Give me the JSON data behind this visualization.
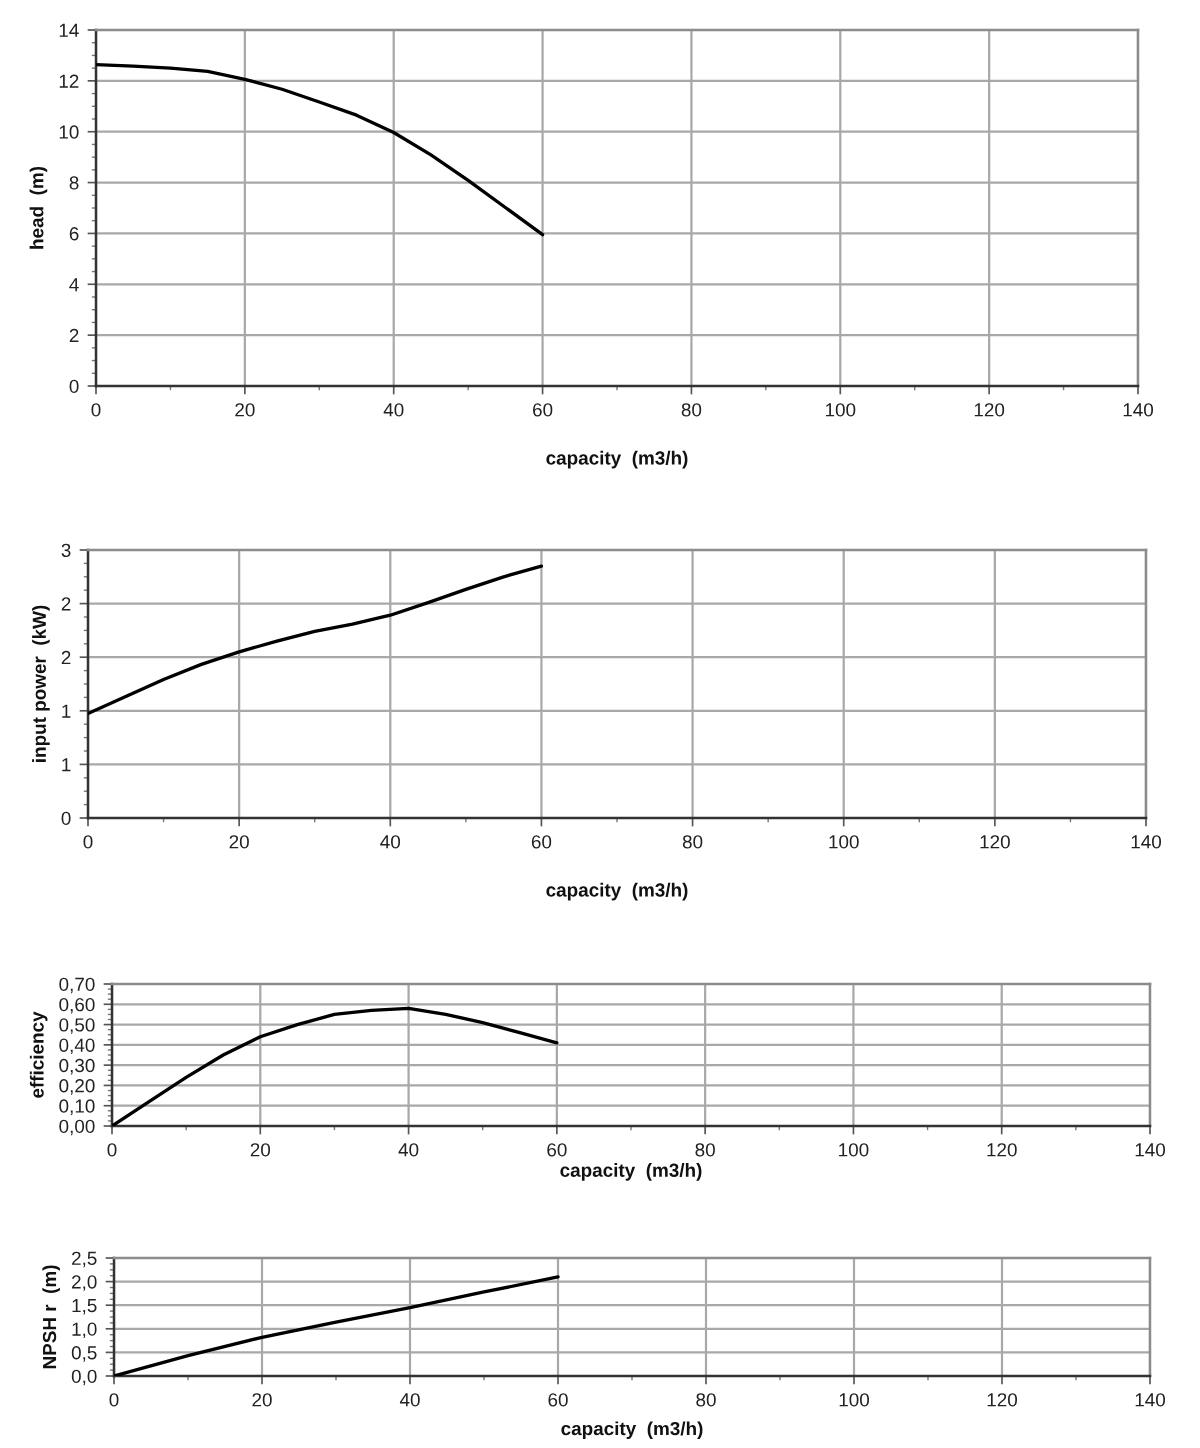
{
  "chart_data": [
    {
      "type": "line",
      "xlabel": "capacity  (m3/h)",
      "ylabel": "head  (m)",
      "x": [
        0,
        5,
        10,
        15,
        20,
        25,
        30,
        35,
        40,
        45,
        50,
        55,
        60
      ],
      "series": [
        {
          "color": "#000000",
          "values": [
            12.64,
            12.58,
            12.5,
            12.37,
            12.06,
            11.67,
            11.17,
            10.65,
            9.97,
            9.09,
            8.09,
            7.02,
            5.95
          ]
        }
      ],
      "xlim": [
        0,
        140
      ],
      "xticks": [
        0,
        20,
        40,
        60,
        80,
        100,
        120,
        140
      ],
      "ylim": [
        0,
        14
      ],
      "yticks": [
        0,
        2,
        4,
        6,
        8,
        10,
        12,
        14
      ],
      "grid": true
    },
    {
      "type": "line",
      "xlabel": "capacity  (m3/h)",
      "ylabel": "input power  (kW)",
      "x": [
        0,
        5,
        10,
        15,
        20,
        25,
        30,
        35,
        40,
        45,
        50,
        55,
        60
      ],
      "series": [
        {
          "color": "#000000",
          "values": [
            1.17,
            1.36,
            1.55,
            1.72,
            1.86,
            1.98,
            2.09,
            2.17,
            2.27,
            2.41,
            2.56,
            2.7,
            2.82
          ]
        }
      ],
      "xlim": [
        0,
        140
      ],
      "xticks": [
        0,
        20,
        40,
        60,
        80,
        100,
        120,
        140
      ],
      "ylim": [
        0,
        3
      ],
      "yticks": [
        0,
        {
          "value": 0.6,
          "label": "1"
        },
        {
          "value": 1.2,
          "label": "1"
        },
        {
          "value": 1.8,
          "label": "2"
        },
        {
          "value": 2.4,
          "label": "2"
        },
        3
      ],
      "grid": true
    },
    {
      "type": "line",
      "xlabel": "capacity  (m3/h)",
      "ylabel": "efficiency",
      "x": [
        0,
        5,
        10,
        15,
        20,
        25,
        30,
        35,
        40,
        45,
        50,
        55,
        60
      ],
      "series": [
        {
          "color": "#000000",
          "values": [
            0,
            0.12,
            0.24,
            0.35,
            0.44,
            0.5,
            0.55,
            0.57,
            0.58,
            0.55,
            0.51,
            0.46,
            0.41
          ]
        }
      ],
      "xlim": [
        0,
        140
      ],
      "xticks": [
        0,
        20,
        40,
        60,
        80,
        100,
        120,
        140
      ],
      "ylim": [
        0,
        0.7
      ],
      "yticks": [
        {
          "value": 0,
          "label": "0,00"
        },
        {
          "value": 0.1,
          "label": "0,10"
        },
        {
          "value": 0.2,
          "label": "0,20"
        },
        {
          "value": 0.3,
          "label": "0,30"
        },
        {
          "value": 0.4,
          "label": "0,40"
        },
        {
          "value": 0.5,
          "label": "0,50"
        },
        {
          "value": 0.6,
          "label": "0,60"
        },
        {
          "value": 0.7,
          "label": "0,70"
        }
      ],
      "grid": true
    },
    {
      "type": "line",
      "xlabel": "capacity  (m3/h)",
      "ylabel": "NPSH r  (m)",
      "x": [
        0,
        10,
        20,
        30,
        40,
        50,
        60
      ],
      "series": [
        {
          "color": "#000000",
          "values": [
            0,
            0.43,
            0.82,
            1.14,
            1.45,
            1.78,
            2.1
          ]
        }
      ],
      "xlim": [
        0,
        140
      ],
      "xticks": [
        0,
        20,
        40,
        60,
        80,
        100,
        120,
        140
      ],
      "ylim": [
        0,
        2.5
      ],
      "yticks": [
        {
          "value": 0,
          "label": "0,0"
        },
        {
          "value": 0.5,
          "label": "0,5"
        },
        {
          "value": 1.0,
          "label": "1,0"
        },
        {
          "value": 1.5,
          "label": "1,5"
        },
        {
          "value": 2.0,
          "label": "2,0"
        },
        {
          "value": 2.5,
          "label": "2,5"
        }
      ],
      "grid": true
    }
  ]
}
